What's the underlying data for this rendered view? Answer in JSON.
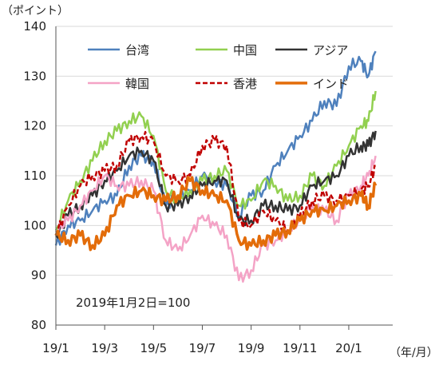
{
  "chart_data": {
    "type": "line",
    "ylabel_unit": "（ポイント）",
    "xlabel_unit": "（年/月）",
    "note": "2019年1月2日=100",
    "ylim": [
      80,
      140
    ],
    "yticks": [
      80,
      90,
      100,
      110,
      120,
      130,
      140
    ],
    "xlim": [
      0,
      13.8
    ],
    "xticks": [
      {
        "pos": 0,
        "label": "19/1"
      },
      {
        "pos": 2,
        "label": "19/3"
      },
      {
        "pos": 4,
        "label": "19/5"
      },
      {
        "pos": 6,
        "label": "19/7"
      },
      {
        "pos": 8,
        "label": "19/9"
      },
      {
        "pos": 10,
        "label": "19/11"
      },
      {
        "pos": 12,
        "label": "20/1"
      }
    ],
    "grid": "horizontal",
    "legend_placement": "top",
    "series": [
      {
        "name": "台湾",
        "color": "#4f81bd",
        "dash": "solid",
        "width": 2.5,
        "x": [
          0,
          0.5,
          1,
          1.5,
          2,
          2.5,
          3,
          3.5,
          4,
          4.5,
          5,
          5.5,
          6,
          6.5,
          7,
          7.5,
          8,
          8.5,
          9,
          9.5,
          10,
          10.5,
          11,
          11.5,
          12,
          12.5,
          12.8,
          13.1
        ],
        "y": [
          96,
          100,
          101,
          103,
          105,
          106,
          112,
          114,
          113,
          104,
          106,
          107,
          110,
          109,
          108,
          102,
          106,
          107,
          112,
          115,
          118,
          121,
          125,
          124,
          132,
          133,
          130,
          135
        ]
      },
      {
        "name": "中国",
        "color": "#92d050",
        "dash": "solid",
        "width": 2.5,
        "x": [
          0,
          0.5,
          1,
          1.5,
          2,
          2.5,
          3,
          3.5,
          4,
          4.5,
          5,
          5.5,
          6,
          6.5,
          7,
          7.5,
          8,
          8.5,
          9,
          9.5,
          10,
          10.5,
          11,
          11.5,
          12,
          12.5,
          12.8,
          13.1
        ],
        "y": [
          99,
          105,
          109,
          113,
          117,
          119,
          121,
          122,
          118,
          107,
          105,
          107,
          109,
          110,
          111,
          104,
          105,
          109,
          108,
          105,
          106,
          110,
          108,
          112,
          116,
          120,
          121,
          127
        ]
      },
      {
        "name": "アジア",
        "color": "#333333",
        "dash": "solid",
        "width": 2.5,
        "x": [
          0,
          0.5,
          1,
          1.5,
          2,
          2.5,
          3,
          3.5,
          4,
          4.5,
          5,
          5.5,
          6,
          6.5,
          7,
          7.5,
          8,
          8.5,
          9,
          9.5,
          10,
          10.5,
          11,
          11.5,
          12,
          12.5,
          12.8,
          13.1
        ],
        "y": [
          98,
          102,
          104,
          106,
          109,
          111,
          114,
          115,
          113,
          104,
          104,
          106,
          108,
          109,
          109,
          101,
          101,
          104,
          104,
          103,
          104,
          108,
          109,
          110,
          114,
          116,
          116,
          119
        ]
      },
      {
        "name": "韓国",
        "color": "#f4a3c6",
        "dash": "solid",
        "width": 2.5,
        "x": [
          0,
          0.5,
          1,
          1.5,
          2,
          2.5,
          3,
          3.5,
          4,
          4.5,
          5,
          5.5,
          6,
          6.5,
          7,
          7.5,
          8,
          8.5,
          9,
          9.5,
          10,
          10.5,
          11,
          11.5,
          12,
          12.5,
          12.8,
          13.1
        ],
        "y": [
          99,
          101,
          104,
          107,
          110,
          108,
          108,
          109,
          107,
          97,
          95,
          98,
          102,
          100,
          98,
          89,
          91,
          96,
          97,
          99,
          101,
          104,
          103,
          101,
          106,
          108,
          110,
          114
        ]
      },
      {
        "name": "香港",
        "color": "#c00000",
        "dash": "dashed",
        "width": 2.5,
        "x": [
          0,
          0.5,
          1,
          1.5,
          2,
          2.5,
          3,
          3.5,
          4,
          4.5,
          5,
          5.5,
          6,
          6.5,
          7,
          7.5,
          8,
          8.5,
          9,
          9.5,
          10,
          10.5,
          11,
          11.5,
          12,
          12.5,
          12.8,
          13.1
        ],
        "y": [
          98,
          104,
          108,
          110,
          111,
          112,
          117,
          118,
          117,
          110,
          109,
          110,
          116,
          117,
          116,
          101,
          100,
          103,
          101,
          99,
          102,
          105,
          106,
          105,
          106,
          107,
          108,
          112
        ]
      },
      {
        "name": "インド",
        "color": "#e36c09",
        "dash": "solid",
        "width": 3.5,
        "x": [
          0,
          0.5,
          1,
          1.5,
          2,
          2.5,
          3,
          3.5,
          4,
          4.5,
          5,
          5.5,
          6,
          6.5,
          7,
          7.5,
          8,
          8.5,
          9,
          9.5,
          10,
          10.5,
          11,
          11.5,
          12,
          12.5,
          12.8,
          13.1
        ],
        "y": [
          98,
          97,
          98,
          96,
          98,
          104,
          106,
          107,
          106,
          105,
          106,
          109,
          107,
          106,
          105,
          97,
          96,
          97,
          98,
          99,
          101,
          103,
          103,
          104,
          105,
          106,
          104,
          108
        ]
      }
    ]
  }
}
